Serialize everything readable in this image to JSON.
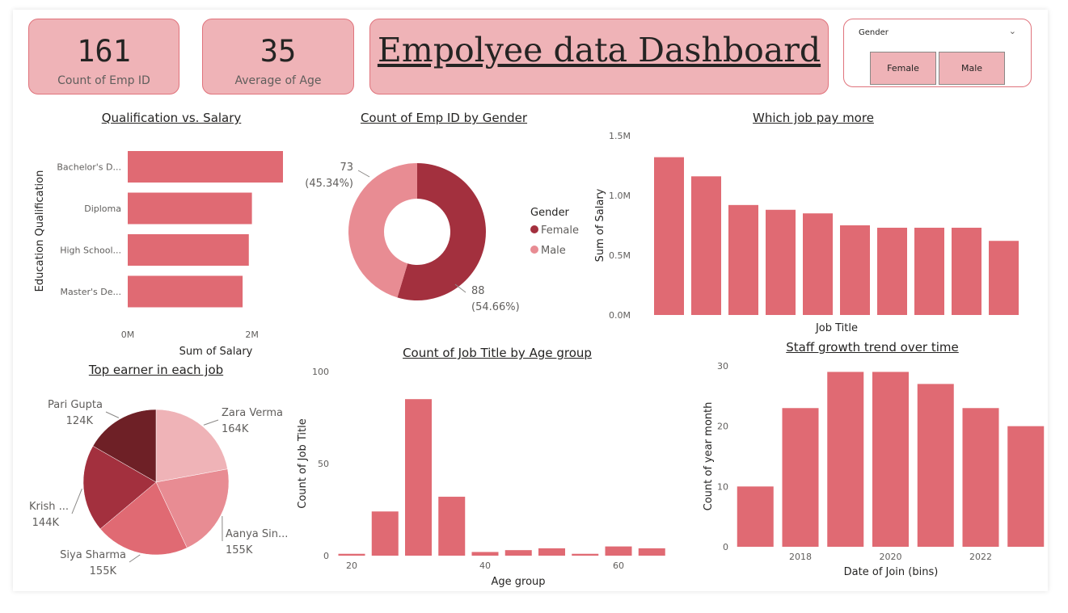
{
  "kpis": [
    {
      "value": "161",
      "label": "Count of Emp ID"
    },
    {
      "value": "35",
      "label": "Average of Age"
    }
  ],
  "dashboard_title": "Empolyee data Dashboard",
  "slicer": {
    "header": "Gender",
    "options": [
      "Female",
      "Male"
    ]
  },
  "colors": {
    "bar": "#e06a73",
    "card": "#efb3b7",
    "card_border": "#e0737c",
    "female": "#a3303e",
    "male": "#e88c93",
    "pie": [
      "#efb3b7",
      "#e88c93",
      "#e06a73",
      "#a3303e",
      "#6e2026"
    ]
  },
  "chart_data": [
    {
      "id": "qualification",
      "type": "bar",
      "orientation": "horizontal",
      "title": "Qualification vs. Salary",
      "xlabel": "Sum of Salary",
      "ylabel": "Education Qualification",
      "categories": [
        "Bachelor's D...",
        "Diploma",
        "High School...",
        "Master's De..."
      ],
      "values": [
        2.5,
        2.0,
        1.95,
        1.85
      ],
      "xlim": [
        0,
        2.6
      ],
      "xticks": [
        {
          "v": 0,
          "label": "0M"
        },
        {
          "v": 2,
          "label": "2M"
        }
      ]
    },
    {
      "id": "gender",
      "type": "pie",
      "title": "Count of Emp ID by Gender",
      "legend_title": "Gender",
      "legend": [
        "Female",
        "Male"
      ],
      "slices": [
        {
          "name": "Female",
          "value": 88,
          "label_value": "88",
          "label_pct": "(54.66%)"
        },
        {
          "name": "Male",
          "value": 73,
          "label_value": "73",
          "label_pct": "(45.34%)"
        }
      ]
    },
    {
      "id": "jobpay",
      "type": "bar",
      "title": "Which job pay more",
      "xlabel": "Job Title",
      "ylabel": "Sum of Salary",
      "values": [
        1.32,
        1.16,
        0.92,
        0.88,
        0.85,
        0.75,
        0.73,
        0.73,
        0.73,
        0.62
      ],
      "ylim": [
        0,
        1.5
      ],
      "yticks": [
        {
          "v": 0,
          "label": "0.0M"
        },
        {
          "v": 0.5,
          "label": "0.5M"
        },
        {
          "v": 1.0,
          "label": "1.0M"
        },
        {
          "v": 1.5,
          "label": "1.5M"
        }
      ]
    },
    {
      "id": "topearner",
      "type": "pie",
      "title": "Top earner in each job",
      "slices": [
        {
          "name": "Zara Verma",
          "value": 164,
          "label": "164K"
        },
        {
          "name": "Aanya Sin...",
          "value": 155,
          "label": "155K"
        },
        {
          "name": "Siya Sharma",
          "value": 155,
          "label": "155K"
        },
        {
          "name": "Krish ...",
          "value": 144,
          "label": "144K"
        },
        {
          "name": "Pari Gupta",
          "value": 124,
          "label": "124K"
        }
      ]
    },
    {
      "id": "agegroup",
      "type": "bar",
      "title": "Count of Job Title by Age group",
      "xlabel": "Age group",
      "ylabel": "Count of Job Title",
      "bins": [
        {
          "x": 20,
          "y": 1
        },
        {
          "x": 25,
          "y": 24
        },
        {
          "x": 30,
          "y": 85
        },
        {
          "x": 35,
          "y": 32
        },
        {
          "x": 40,
          "y": 2
        },
        {
          "x": 45,
          "y": 3
        },
        {
          "x": 50,
          "y": 4
        },
        {
          "x": 55,
          "y": 1
        },
        {
          "x": 60,
          "y": 5
        },
        {
          "x": 65,
          "y": 4
        }
      ],
      "ylim": [
        0,
        100
      ],
      "yticks": [
        {
          "v": 0,
          "label": "0"
        },
        {
          "v": 50,
          "label": "50"
        },
        {
          "v": 100,
          "label": "100"
        }
      ],
      "xticks": [
        {
          "v": 20,
          "label": "20"
        },
        {
          "v": 40,
          "label": "40"
        },
        {
          "v": 60,
          "label": "60"
        }
      ]
    },
    {
      "id": "staffgrowth",
      "type": "bar",
      "title": "Staff growth trend over time",
      "xlabel": "Date of Join (bins)",
      "ylabel": "Count of year month",
      "bins": [
        {
          "x": 2017,
          "y": 10
        },
        {
          "x": 2018,
          "y": 23
        },
        {
          "x": 2019,
          "y": 29
        },
        {
          "x": 2020,
          "y": 29
        },
        {
          "x": 2021,
          "y": 27
        },
        {
          "x": 2022,
          "y": 23
        },
        {
          "x": 2023,
          "y": 20
        }
      ],
      "ylim": [
        0,
        30
      ],
      "yticks": [
        {
          "v": 0,
          "label": "0"
        },
        {
          "v": 10,
          "label": "10"
        },
        {
          "v": 20,
          "label": "20"
        },
        {
          "v": 30,
          "label": "30"
        }
      ],
      "xticks": [
        {
          "v": 2018,
          "label": "2018"
        },
        {
          "v": 2020,
          "label": "2020"
        },
        {
          "v": 2022,
          "label": "2022"
        }
      ]
    }
  ]
}
